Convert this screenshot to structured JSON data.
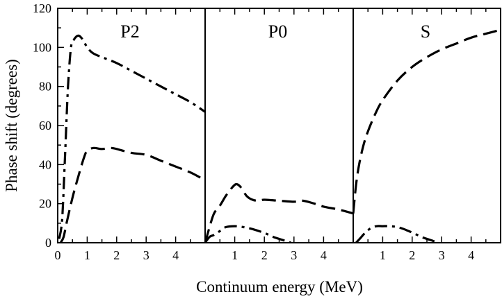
{
  "chart_data": {
    "type": "line",
    "ylabel": "Phase shift (degrees)",
    "xlabel": "Continuum energy (MeV)",
    "ylim": [
      0,
      120
    ],
    "yticks": [
      0,
      20,
      40,
      60,
      80,
      100,
      120
    ],
    "xlim": [
      0,
      5
    ],
    "panels": [
      {
        "title": "P2",
        "xticks": [
          0,
          1,
          2,
          3,
          4
        ],
        "series": [
          {
            "name": "dash-dot",
            "style": "dashdot",
            "x": [
              0.05,
              0.15,
              0.25,
              0.35,
              0.45,
              0.55,
              0.7,
              0.85,
              1.0,
              1.2,
              1.5,
              2.0,
              2.5,
              3.0,
              3.5,
              4.0,
              4.5,
              5.0
            ],
            "y": [
              2,
              12,
              45,
              80,
              100,
              104,
              106,
              104,
              100,
              97,
              95,
              92,
              88,
              84,
              80,
              76,
              72,
              67
            ]
          },
          {
            "name": "dashed",
            "style": "dash",
            "x": [
              0.1,
              0.2,
              0.3,
              0.5,
              0.7,
              0.9,
              1.0,
              1.2,
              1.5,
              1.8,
              2.0,
              2.5,
              3.0,
              3.5,
              4.0,
              4.5,
              5.0
            ],
            "y": [
              0,
              3,
              10,
              23,
              34,
              44,
              47,
              48.5,
              48,
              48.5,
              48,
              46,
              45,
              42,
              39,
              36,
              32
            ]
          }
        ]
      },
      {
        "title": "P0",
        "xticks": [
          1,
          2,
          3,
          4
        ],
        "series": [
          {
            "name": "dashed",
            "style": "dash",
            "x": [
              0.0,
              0.15,
              0.3,
              0.5,
              0.7,
              0.9,
              1.05,
              1.2,
              1.4,
              1.6,
              1.8,
              2.0,
              2.5,
              3.0,
              3.3,
              3.7,
              4.0,
              4.5,
              5.0
            ],
            "y": [
              0,
              8,
              15,
              19,
              24,
              28,
              30,
              28.5,
              24,
              22,
              21.5,
              22,
              21.5,
              21,
              21.5,
              20,
              18.5,
              17,
              15
            ]
          },
          {
            "name": "dash-dot",
            "style": "dashdot",
            "x": [
              0.0,
              0.15,
              0.3,
              0.5,
              0.7,
              1.0,
              1.3,
              1.6,
              2.0,
              2.3,
              2.6,
              2.9
            ],
            "y": [
              0,
              3,
              4,
              6,
              8,
              8.5,
              8,
              7,
              5,
              3,
              1.5,
              0
            ]
          }
        ]
      },
      {
        "title": "S",
        "xticks": [
          1,
          2,
          3,
          4
        ],
        "series": [
          {
            "name": "dashed",
            "style": "dash",
            "x": [
              0.0,
              0.1,
              0.2,
              0.35,
              0.5,
              0.75,
              1.0,
              1.5,
              2.0,
              2.5,
              3.0,
              3.5,
              4.0,
              4.5,
              5.0
            ],
            "y": [
              15,
              30,
              40,
              50,
              57,
              66,
              73,
              83,
              90,
              95,
              99,
              102,
              105,
              107,
              109
            ]
          },
          {
            "name": "dash-dot",
            "style": "dashdot",
            "x": [
              0.1,
              0.25,
              0.4,
              0.6,
              0.8,
              1.0,
              1.2,
              1.5,
              1.8,
              2.1,
              2.4,
              2.7,
              2.85
            ],
            "y": [
              0,
              2.5,
              5,
              7.5,
              8.5,
              8.5,
              8.5,
              8,
              6.5,
              4.5,
              2.5,
              1,
              0
            ]
          }
        ]
      }
    ]
  }
}
